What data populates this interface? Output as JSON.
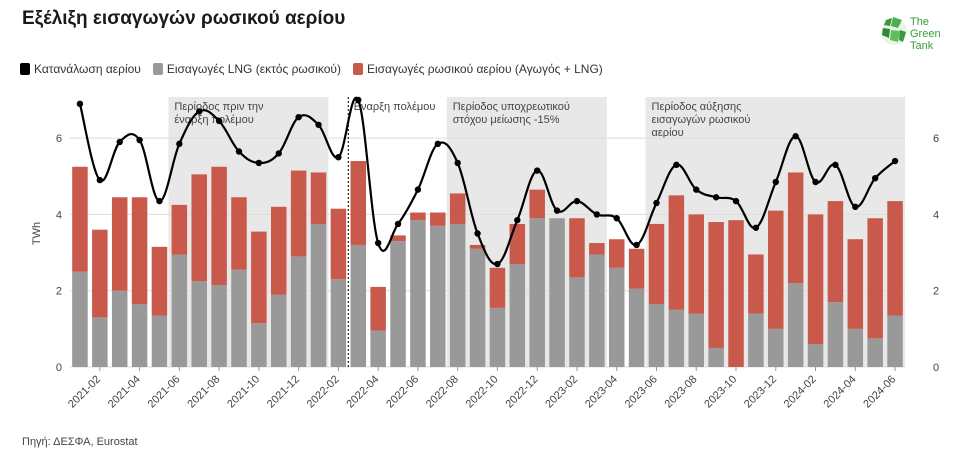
{
  "title": "Εξέλιξη εισαγωγών ρωσικού αερίου",
  "source": "Πηγή: ΔΕΣΦΑ, Eurostat",
  "logo": {
    "line1": "The",
    "line2": "Green",
    "line3": "Tank",
    "color": "#3a9a3a"
  },
  "legend": [
    {
      "label": "Κατανάλωση αερίου",
      "color": "#000000"
    },
    {
      "label": "Εισαγωγές LNG (εκτός ρωσικού)",
      "color": "#999999"
    },
    {
      "label": "Εισαγωγές ρωσικού αερίου (Αγωγός + LNG)",
      "color": "#c9594b"
    }
  ],
  "chart_data": {
    "type": "bar",
    "ylabel": "TWh",
    "ylim": [
      0,
      7
    ],
    "yticks": [
      0,
      2,
      4,
      6
    ],
    "months": [
      "2021-01",
      "2021-02",
      "2021-03",
      "2021-04",
      "2021-05",
      "2021-06",
      "2021-07",
      "2021-08",
      "2021-09",
      "2021-10",
      "2021-11",
      "2021-12",
      "2022-01",
      "2022-02",
      "2022-03",
      "2022-04",
      "2022-05",
      "2022-06",
      "2022-07",
      "2022-08",
      "2022-09",
      "2022-10",
      "2022-11",
      "2022-12",
      "2023-01",
      "2023-02",
      "2023-03",
      "2023-04",
      "2023-05",
      "2023-06",
      "2023-07",
      "2023-08",
      "2023-09",
      "2023-10",
      "2023-11",
      "2023-12",
      "2024-01",
      "2024-02",
      "2024-03",
      "2024-04",
      "2024-05",
      "2024-06"
    ],
    "xtick_labels": [
      "2021-02",
      "2021-04",
      "2021-06",
      "2021-08",
      "2021-10",
      "2021-12",
      "2022-02",
      "2022-04",
      "2022-06",
      "2022-08",
      "2022-10",
      "2022-12",
      "2023-02",
      "2023-04",
      "2023-06",
      "2023-08",
      "2023-10",
      "2023-12",
      "2024-02",
      "2024-04",
      "2024-06"
    ],
    "series": [
      {
        "name": "Εισαγωγές LNG (εκτός ρωσικού)",
        "color": "#999999",
        "values": [
          2.5,
          1.3,
          2.0,
          1.65,
          1.35,
          2.95,
          2.25,
          2.15,
          2.55,
          1.15,
          1.9,
          2.9,
          3.75,
          2.3,
          3.2,
          0.95,
          3.3,
          3.85,
          3.7,
          3.75,
          3.1,
          1.55,
          2.7,
          3.9,
          3.9,
          2.35,
          2.95,
          2.6,
          2.05,
          1.65,
          1.5,
          1.4,
          0.5,
          0.0,
          1.4,
          1.0,
          2.2,
          0.6,
          1.7,
          1.0,
          0.75,
          1.35
        ]
      },
      {
        "name": "Εισαγωγές ρωσικού αερίου (Αγωγός + LNG)",
        "color": "#c9594b",
        "values": [
          2.75,
          2.3,
          2.45,
          2.8,
          1.8,
          1.3,
          2.8,
          3.1,
          1.9,
          2.4,
          2.3,
          2.25,
          1.35,
          1.85,
          2.2,
          1.15,
          0.15,
          0.2,
          0.35,
          0.8,
          0.1,
          1.05,
          1.05,
          0.75,
          0.0,
          1.55,
          0.3,
          0.75,
          1.05,
          2.1,
          3.0,
          2.6,
          3.3,
          3.85,
          1.55,
          3.1,
          2.9,
          3.4,
          2.65,
          2.35,
          3.15,
          3.0
        ]
      },
      {
        "name": "Κατανάλωση αερίου",
        "color": "#000000",
        "type": "line",
        "values": [
          6.9,
          4.9,
          5.9,
          5.95,
          4.35,
          5.85,
          6.7,
          6.45,
          5.65,
          5.35,
          5.6,
          6.55,
          6.35,
          5.5,
          7.0,
          3.25,
          3.75,
          4.65,
          5.85,
          5.35,
          3.5,
          2.7,
          3.85,
          5.15,
          4.1,
          4.35,
          4.0,
          3.9,
          3.2,
          4.3,
          5.3,
          4.65,
          4.45,
          4.35,
          3.65,
          4.85,
          6.05,
          4.85,
          5.3,
          4.2,
          4.95,
          5.4
        ]
      }
    ],
    "periods": [
      {
        "label_lines": [
          "Περίοδος πριν την",
          "έναρξη πολέμου"
        ],
        "from": "2021-06",
        "to": "2022-01"
      },
      {
        "label_lines": [
          "Περίοδος υποχρεωτικού",
          "στόχου μείωσης -15%"
        ],
        "from": "2022-08",
        "to": "2023-03"
      },
      {
        "label_lines": [
          "Περίοδος αύξησης",
          "εισαγωγών ρωσικού",
          "αερίου"
        ],
        "from": "2023-06",
        "to": "2024-06"
      }
    ],
    "event": {
      "label": "Έναρξη πολέμου",
      "at": "2022-03"
    }
  }
}
